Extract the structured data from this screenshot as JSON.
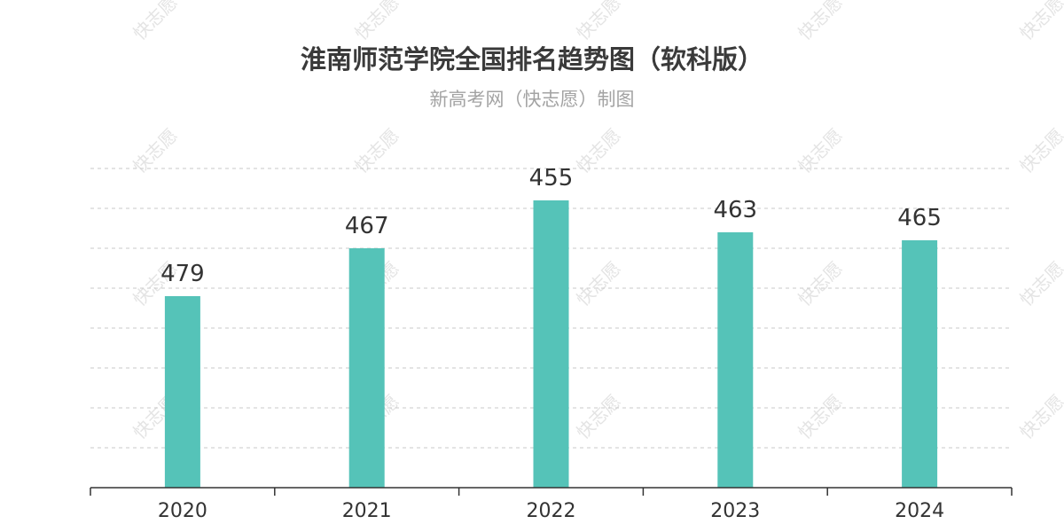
{
  "watermark_text": "快志愿",
  "chart_data": {
    "type": "bar",
    "title": "淮南师范学院全国排名趋势图（软科版）",
    "subtitle": "新高考网（快志愿）制图",
    "categories": [
      "2020",
      "2021",
      "2022",
      "2023",
      "2024"
    ],
    "values": [
      479,
      467,
      455,
      463,
      465
    ],
    "axis": {
      "reversed": true,
      "grid": true,
      "yticks_shown": false
    },
    "bar_color": "#55c3b8"
  }
}
